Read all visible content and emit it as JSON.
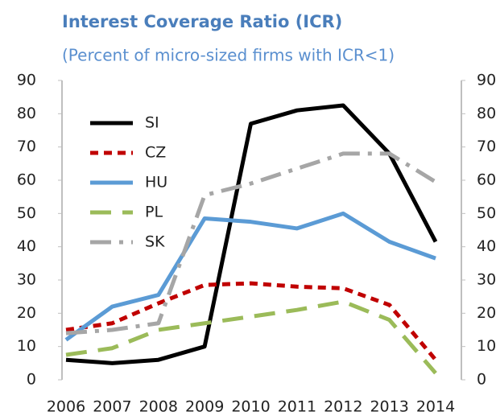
{
  "chart_data": {
    "type": "line",
    "title": "Interest Coverage Ratio (ICR)",
    "subtitle": "(Percent of micro-sized firms with ICR<1)",
    "categories": [
      "2006",
      "2007",
      "2008",
      "2009",
      "2010",
      "2011",
      "2012",
      "2013",
      "2014"
    ],
    "series": [
      {
        "name": "SI",
        "color": "#000000",
        "linestyle": "solid",
        "values": [
          6,
          5,
          6,
          10,
          77,
          81,
          82.5,
          68,
          41.5
        ]
      },
      {
        "name": "CZ",
        "color": "#c00000",
        "linestyle": "dotted",
        "values": [
          15,
          17,
          23,
          28.5,
          29,
          28,
          27.5,
          22.5,
          6
        ]
      },
      {
        "name": "HU",
        "color": "#5b9bd5",
        "linestyle": "solid",
        "values": [
          12,
          22,
          25.5,
          48.5,
          47.5,
          45.5,
          50,
          41.5,
          36.5
        ]
      },
      {
        "name": "PL",
        "color": "#9bbb59",
        "linestyle": "dashed",
        "values": [
          7.5,
          9.5,
          15,
          17,
          19,
          21,
          23.5,
          18,
          2
        ]
      },
      {
        "name": "SK",
        "color": "#a6a6a6",
        "linestyle": "dashdot",
        "values": [
          14,
          15,
          17,
          55.5,
          59,
          63.5,
          68,
          68,
          59.5
        ]
      }
    ],
    "ylim": [
      0,
      90
    ],
    "yticks": [
      0,
      10,
      20,
      30,
      40,
      50,
      60,
      70,
      80,
      90
    ],
    "y2lim": [
      0,
      90
    ],
    "y2ticks": [
      0,
      10,
      20,
      30,
      40,
      50,
      60,
      70,
      80,
      90
    ],
    "grid": false,
    "legend": "upper left"
  }
}
